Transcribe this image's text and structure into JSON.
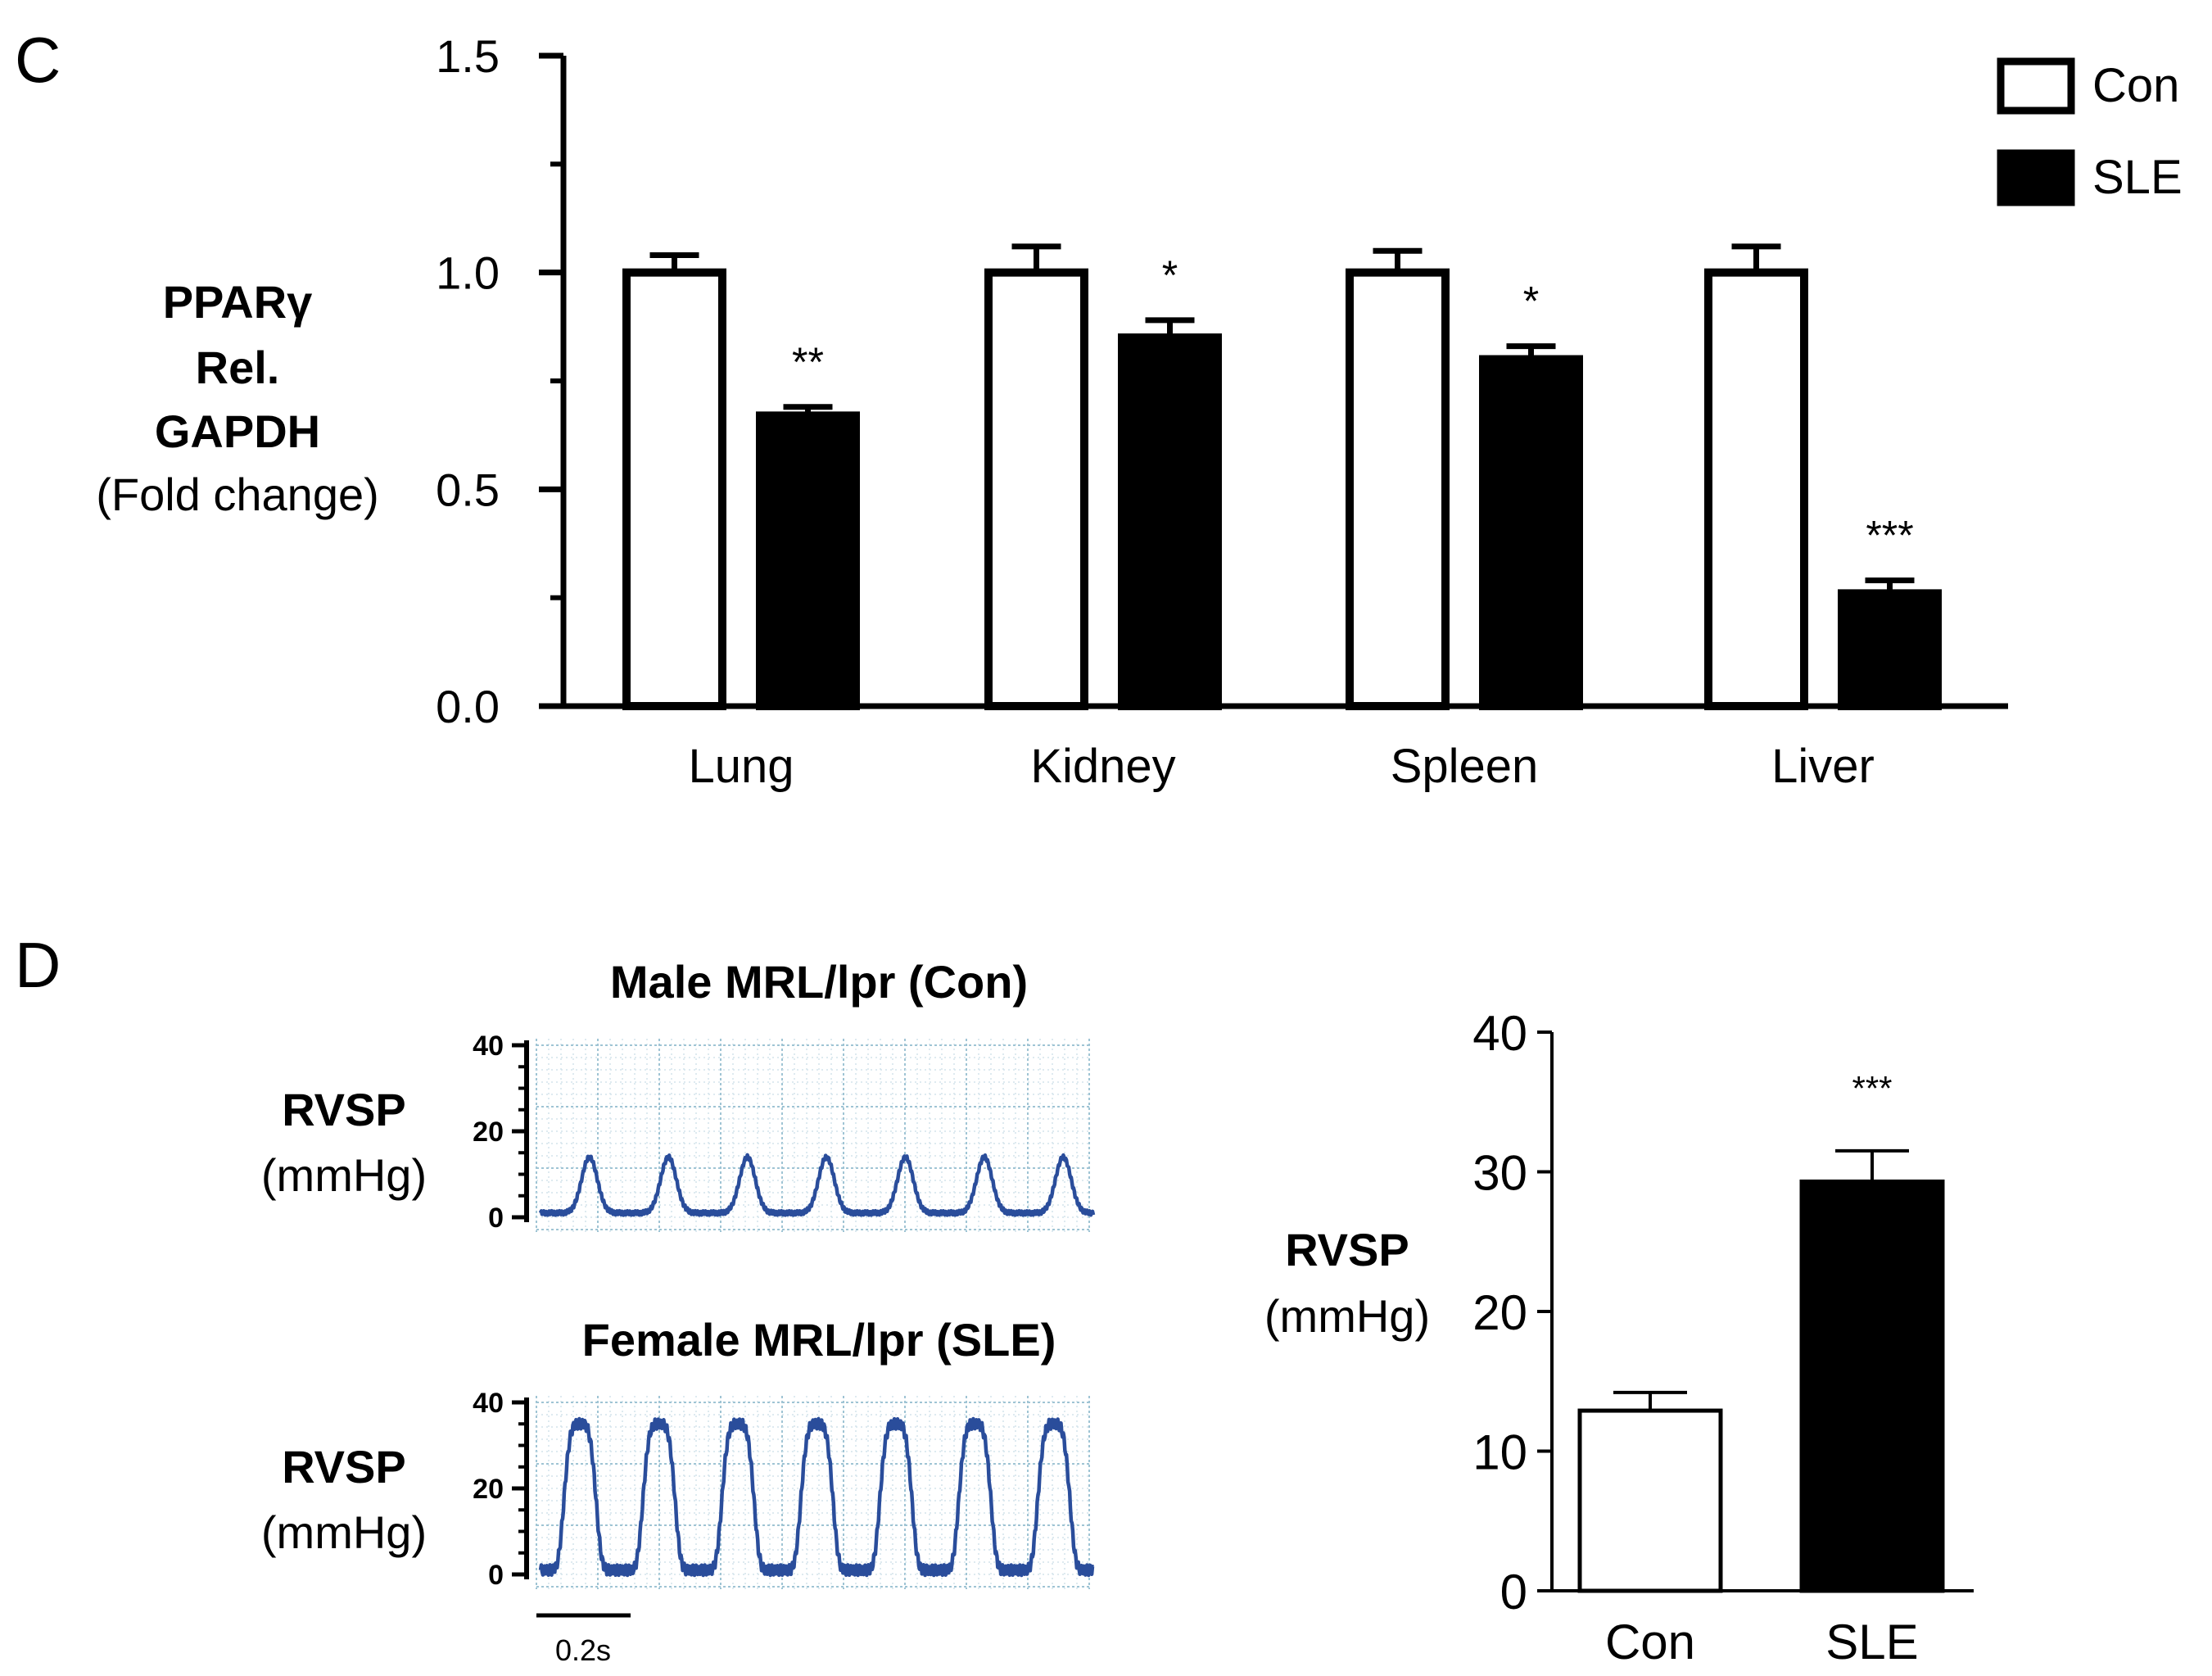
{
  "panel_c": {
    "label": "C"
  },
  "panel_d": {
    "label": "D"
  },
  "chart_data": [
    {
      "type": "bar",
      "title": "",
      "ylabel_lines": [
        "PPARγ",
        "Rel.",
        "GAPDH",
        "(Fold change)"
      ],
      "xlabel": "",
      "categories": [
        "Lung",
        "Kidney",
        "Spleen",
        "Liver"
      ],
      "ylim": [
        0,
        1.5
      ],
      "yticks": [
        "0.0",
        "0.5",
        "1.0",
        "1.5"
      ],
      "series": [
        {
          "name": "Con",
          "color": "#ffffff",
          "values": [
            1.0,
            1.0,
            1.0,
            1.0
          ],
          "errors": [
            0.04,
            0.06,
            0.05,
            0.06
          ]
        },
        {
          "name": "SLE",
          "color": "#000000",
          "values": [
            0.67,
            0.85,
            0.8,
            0.26
          ],
          "errors": [
            0.02,
            0.04,
            0.03,
            0.03
          ]
        }
      ],
      "significance": [
        "**",
        "*",
        "*",
        "***"
      ],
      "legend": [
        "Con",
        "SLE"
      ],
      "legend_position": "top-right"
    },
    {
      "type": "line",
      "title": "Male MRL/lpr (Con)",
      "ylabel_lines": [
        "RVSP",
        "(mmHg)"
      ],
      "ylim": [
        0,
        40
      ],
      "yticks": [
        "0",
        "20",
        "40"
      ],
      "peaks": 7,
      "baseline": 1,
      "peak_value": 14
    },
    {
      "type": "line",
      "title": "Female MRL/lpr (SLE)",
      "ylabel_lines": [
        "RVSP",
        "(mmHg)"
      ],
      "ylim": [
        0,
        40
      ],
      "yticks": [
        "0",
        "20",
        "40"
      ],
      "peaks": 7,
      "baseline": 1,
      "peak_value": 35,
      "scale_bar": "0.2s"
    },
    {
      "type": "bar",
      "title": "",
      "ylabel_lines": [
        "RVSP",
        "(mmHg)"
      ],
      "categories": [
        "Con",
        "SLE"
      ],
      "ylim": [
        0,
        40
      ],
      "yticks": [
        "0",
        "10",
        "20",
        "30",
        "40"
      ],
      "series": [
        {
          "name": "RVSP",
          "values": [
            12.9,
            29.3
          ],
          "errors": [
            1.3,
            2.2
          ],
          "colors": [
            "#ffffff",
            "#000000"
          ]
        }
      ],
      "significance": [
        "",
        "***"
      ]
    }
  ]
}
